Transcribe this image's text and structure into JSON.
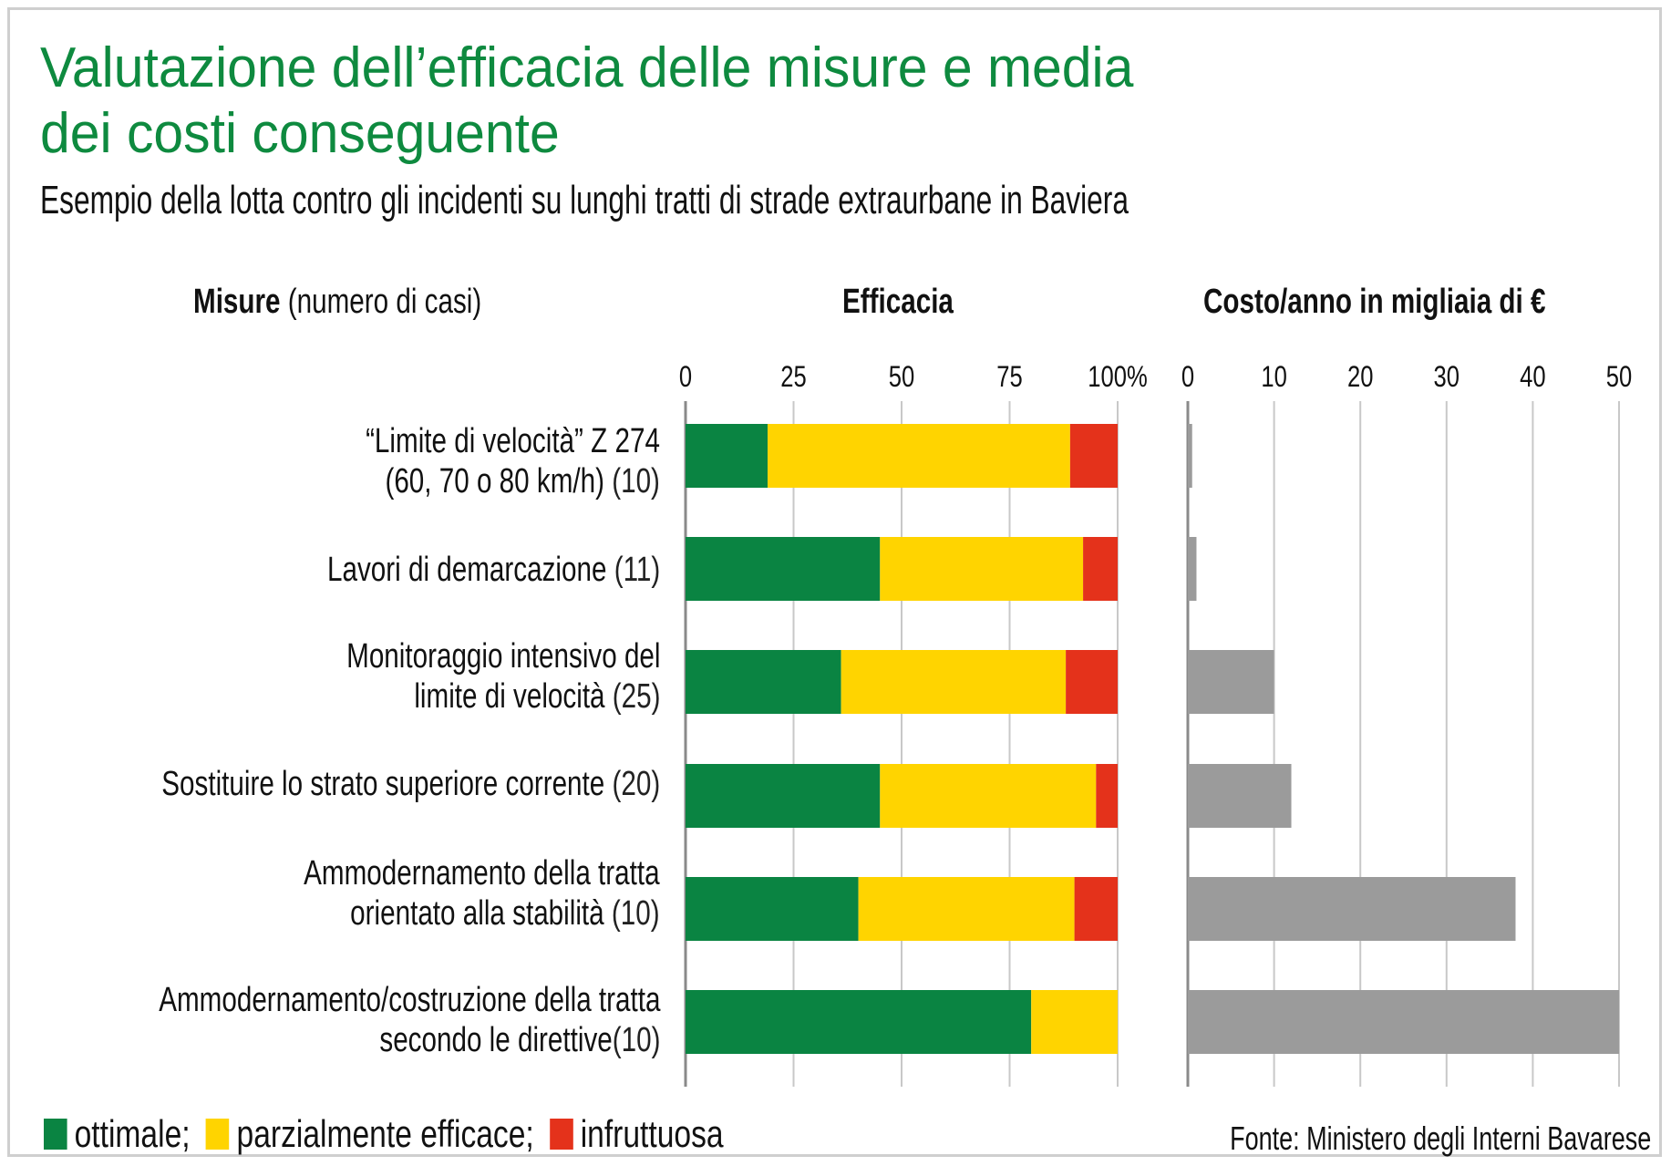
{
  "title_line1": "Valutazione dell’efficacia delle misure e media",
  "title_line2": "dei costi conseguente",
  "subtitle": "Esempio della lotta contro gli incidenti su lunghi tratti di strade extraurbane in Baviera",
  "headers": {
    "misure_bold": "Misure",
    "misure_rest": " (numero di casi)",
    "efficacia": "Efficacia",
    "costo": "Costo/anno in migliaia di €"
  },
  "rows": [
    {
      "line1_bold": "“Limite di velocità” Z 274",
      "line1_num": "",
      "line2_bold": "(60, 70 o 80 km/h)",
      "line2_num": " (10)"
    },
    {
      "line1_bold": "Lavori di demarcazione",
      "line1_num": " (11)",
      "line2_bold": "",
      "line2_num": ""
    },
    {
      "line1_bold": "Monitoraggio intensivo del",
      "line1_num": "",
      "line2_bold": "limite di velocità",
      "line2_num": " (25)"
    },
    {
      "line1_bold": "Sostituire lo strato superiore corrente",
      "line1_num": " (20)",
      "line2_bold": "",
      "line2_num": ""
    },
    {
      "line1_bold": "Ammodernamento della tratta",
      "line1_num": "",
      "line2_bold": "orientato alla stabilità",
      "line2_num": " (10)"
    },
    {
      "line1_bold": "Ammodernamento/costruzione della tratta",
      "line1_num": "",
      "line2_bold": "secondo le direttive",
      "line2_num": "(10)"
    }
  ],
  "legend": [
    "ottimale;",
    "parzialmente efficace;",
    "infruttuosa"
  ],
  "source": "Fonte: Ministero degli Interni Bavarese",
  "colors": {
    "title": "#0e8a3f",
    "ottimale": "#0a8442",
    "parziale": "#ffd400",
    "infruttuosa": "#e4321b",
    "cost": "#9b9b9b",
    "grid": "#c8c8c8"
  },
  "chart_data": [
    {
      "type": "bar",
      "orientation": "horizontal",
      "stacked": true,
      "title": "Efficacia",
      "categories": [
        "“Limite di velocità” Z 274 (60, 70 o 80 km/h) (10)",
        "Lavori di demarcazione (11)",
        "Monitoraggio intensivo del limite di velocità (25)",
        "Sostituire lo strato superiore corrente (20)",
        "Ammodernamento della tratta orientato alla stabilità (10)",
        "Ammodernamento/costruzione della tratta secondo le direttive (10)"
      ],
      "series": [
        {
          "name": "ottimale",
          "values": [
            19,
            45,
            36,
            45,
            40,
            80
          ]
        },
        {
          "name": "parzialmente efficace",
          "values": [
            70,
            47,
            52,
            50,
            50,
            20
          ]
        },
        {
          "name": "infruttuosa",
          "values": [
            11,
            8,
            12,
            5,
            10,
            0
          ]
        }
      ],
      "xlim": [
        0,
        100
      ],
      "ticks": [
        "0",
        "25",
        "50",
        "75",
        "100%"
      ],
      "tick_values": [
        0,
        25,
        50,
        75,
        100
      ]
    },
    {
      "type": "bar",
      "orientation": "horizontal",
      "title": "Costo/anno in migliaia di €",
      "categories": [
        "“Limite di velocità” Z 274 (60, 70 o 80 km/h) (10)",
        "Lavori di demarcazione (11)",
        "Monitoraggio intensivo del limite di velocità (25)",
        "Sostituire lo strato superiore corrente (20)",
        "Ammodernamento della tratta orientato alla stabilità (10)",
        "Ammodernamento/costruzione della tratta secondo le direttive (10)"
      ],
      "values": [
        0.5,
        1,
        10,
        12,
        38,
        50
      ],
      "xlim": [
        0,
        50
      ],
      "ticks": [
        "0",
        "10",
        "20",
        "30",
        "40",
        "50"
      ],
      "tick_values": [
        0,
        10,
        20,
        30,
        40,
        50
      ]
    }
  ]
}
